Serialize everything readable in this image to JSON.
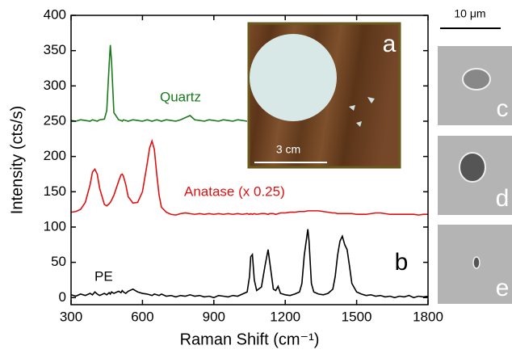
{
  "chart_data": {
    "type": "line",
    "xlabel": "Raman Shift (cm⁻¹)",
    "ylabel": "Intensity (cts/s)",
    "xlim": [
      300,
      1800
    ],
    "ylim": [
      -10,
      400
    ],
    "xticks": [
      300,
      600,
      900,
      1200,
      1500,
      1800
    ],
    "yticks": [
      0,
      50,
      100,
      150,
      200,
      250,
      300,
      350,
      400
    ],
    "grid": false,
    "x": [
      300,
      320,
      340,
      360,
      380,
      390,
      400,
      410,
      420,
      440,
      450,
      460,
      465,
      470,
      480,
      500,
      510,
      515,
      520,
      530,
      540,
      560,
      580,
      600,
      620,
      630,
      640,
      650,
      660,
      670,
      680,
      700,
      720,
      740,
      760,
      780,
      800,
      820,
      840,
      860,
      880,
      900,
      920,
      940,
      960,
      980,
      1000,
      1020,
      1040,
      1050,
      1055,
      1062,
      1070,
      1080,
      1100,
      1115,
      1128,
      1135,
      1150,
      1160,
      1170,
      1180,
      1200,
      1220,
      1240,
      1260,
      1270,
      1280,
      1295,
      1300,
      1310,
      1320,
      1340,
      1360,
      1380,
      1400,
      1410,
      1420,
      1430,
      1440,
      1450,
      1460,
      1470,
      1480,
      1500,
      1520,
      1540,
      1560,
      1580,
      1600,
      1620,
      1640,
      1660,
      1680,
      1700,
      1720,
      1740,
      1760,
      1780,
      1800
    ],
    "series": [
      {
        "name": "Quartz",
        "color": "#1a7a1a",
        "values": [
          251,
          250,
          252,
          251,
          250,
          252,
          251,
          250,
          252,
          253,
          265,
          330,
          358,
          335,
          262,
          252,
          251,
          250,
          252,
          251,
          250,
          252,
          251,
          250,
          252,
          251,
          250,
          251,
          252,
          251,
          250,
          252,
          251,
          250,
          252,
          255,
          258,
          252,
          251,
          250,
          252,
          251,
          250,
          252,
          251,
          250,
          252,
          251,
          250,
          null,
          null,
          null,
          null,
          null,
          null,
          null,
          null,
          null,
          null,
          null,
          null,
          null,
          null,
          null,
          null,
          null,
          null,
          null,
          null,
          null,
          null,
          null,
          null,
          null,
          null,
          null,
          null,
          null,
          null,
          null,
          null,
          null,
          null,
          null,
          null,
          null,
          null,
          null,
          null,
          null,
          null,
          null,
          null,
          null,
          null,
          null,
          null,
          null,
          null,
          null
        ]
      },
      {
        "name": "Anatase (x 0.25)",
        "color": "#e01010",
        "values": [
          121,
          122,
          125,
          135,
          160,
          178,
          182,
          175,
          155,
          132,
          130,
          133,
          135,
          138,
          145,
          165,
          174,
          175,
          172,
          160,
          143,
          134,
          135,
          150,
          190,
          212,
          222,
          210,
          175,
          145,
          128,
          121,
          118,
          117,
          119,
          120,
          119,
          118,
          119,
          118,
          119,
          118,
          119,
          118,
          119,
          118,
          119,
          118,
          119,
          118,
          119,
          118,
          119,
          118,
          119,
          119,
          118,
          119,
          119,
          118,
          119,
          120,
          120,
          121,
          121,
          122,
          122,
          122,
          123,
          123,
          123,
          123,
          123,
          122,
          121,
          120,
          120,
          119,
          119,
          119,
          119,
          119,
          119,
          119,
          118,
          118,
          118,
          119,
          120,
          120,
          119,
          118,
          118,
          118,
          118,
          118,
          118,
          117,
          118,
          118
        ]
      },
      {
        "name": "PE",
        "color": "#000000",
        "values": [
          4,
          2,
          5,
          3,
          6,
          4,
          8,
          5,
          3,
          6,
          4,
          7,
          5,
          8,
          6,
          9,
          7,
          10,
          8,
          6,
          9,
          12,
          8,
          6,
          5,
          4,
          3,
          5,
          4,
          3,
          5,
          2,
          3,
          1,
          3,
          2,
          4,
          2,
          3,
          1,
          2,
          0,
          3,
          2,
          1,
          3,
          2,
          5,
          8,
          30,
          58,
          61,
          25,
          10,
          15,
          45,
          68,
          50,
          12,
          10,
          16,
          6,
          4,
          3,
          5,
          8,
          20,
          60,
          97,
          80,
          20,
          8,
          5,
          4,
          6,
          12,
          30,
          60,
          80,
          87,
          75,
          68,
          45,
          20,
          8,
          5,
          3,
          4,
          2,
          3,
          1,
          2,
          0,
          2,
          1,
          3,
          0,
          2,
          1,
          2
        ]
      }
    ],
    "annotations": [
      "b",
      "a",
      "3 cm",
      "10 μm",
      "c",
      "d",
      "e"
    ]
  }
}
